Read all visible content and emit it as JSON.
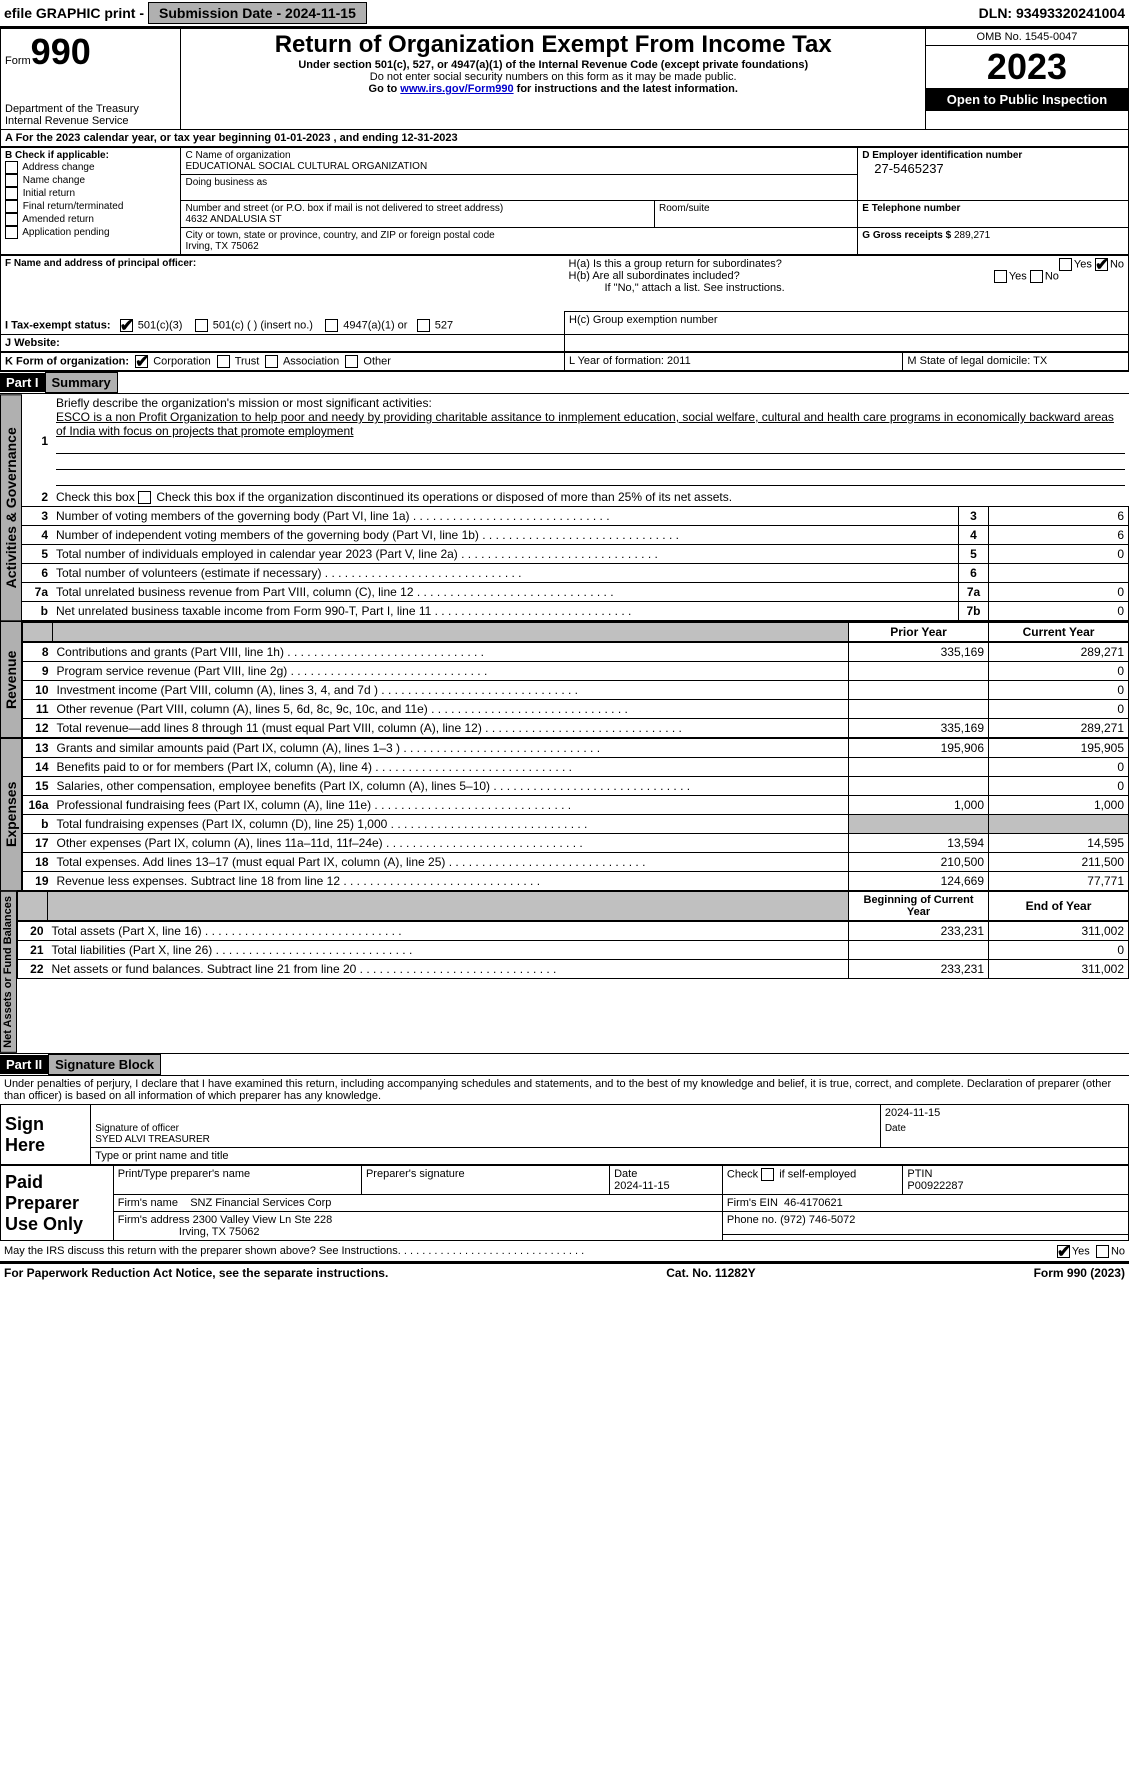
{
  "top": {
    "efile": "efile GRAPHIC print -",
    "submission_label": "Submission Date - 2024-11-15",
    "dln": "DLN: 93493320241004"
  },
  "header": {
    "form_label": "Form",
    "form_number": "990",
    "dept": "Department of the Treasury",
    "irs": "Internal Revenue Service",
    "title": "Return of Organization Exempt From Income Tax",
    "sub1": "Under section 501(c), 527, or 4947(a)(1) of the Internal Revenue Code (except private foundations)",
    "sub2": "Do not enter social security numbers on this form as it may be made public.",
    "sub3_pre": "Go to ",
    "sub3_link": "www.irs.gov/Form990",
    "sub3_post": " for instructions and the latest information.",
    "omb": "OMB No. 1545-0047",
    "year": "2023",
    "open": "Open to Public Inspection"
  },
  "A": {
    "line": "A For the 2023 calendar year, or tax year beginning 01-01-2023     , and ending 12-31-2023"
  },
  "B": {
    "title": "B Check if applicable:",
    "items": [
      "Address change",
      "Name change",
      "Initial return",
      "Final return/terminated",
      "Amended return",
      "Application pending"
    ]
  },
  "C": {
    "name_label": "C Name of organization",
    "name": "EDUCATIONAL SOCIAL CULTURAL ORGANIZATION",
    "dba_label": "Doing business as",
    "street_label": "Number and street (or P.O. box if mail is not delivered to street address)",
    "street": "4632 ANDALUSIA ST",
    "room_label": "Room/suite",
    "city_label": "City or town, state or province, country, and ZIP or foreign postal code",
    "city": "Irving, TX  75062"
  },
  "D": {
    "label": "D Employer identification number",
    "value": "27-5465237"
  },
  "E": {
    "label": "E Telephone number"
  },
  "G": {
    "label": "G Gross receipts $",
    "value": "289,271"
  },
  "F": {
    "label": "F   Name and address of principal officer:"
  },
  "H": {
    "a": "H(a)  Is this a group return for subordinates?",
    "b": "H(b)  Are all subordinates included?",
    "b_note": "If \"No,\" attach a list. See instructions.",
    "c": "H(c)  Group exemption number",
    "yes": "Yes",
    "no": "No"
  },
  "I": {
    "label": "I     Tax-exempt status:",
    "opts": [
      "501(c)(3)",
      "501(c) (  ) (insert no.)",
      "4947(a)(1) or",
      "527"
    ]
  },
  "J": {
    "label": "J    Website:"
  },
  "K": {
    "label": "K Form of organization:",
    "opts": [
      "Corporation",
      "Trust",
      "Association",
      "Other"
    ]
  },
  "L": {
    "label": "L Year of formation: 2011"
  },
  "M": {
    "label": "M State of legal domicile: TX"
  },
  "partI": {
    "bar": "Part I",
    "title": "Summary"
  },
  "gov": {
    "side": "Activities & Governance",
    "l1_label": "Briefly describe the organization's mission or most significant activities:",
    "l1_text": "ESCO is a non Profit Organization to help poor and needy by providing charitable assitance to inmplement education, social welfare, cultural and health care programs in economically backward areas of India with focus on projects that promote employment",
    "l2": "Check this box      if the organization discontinued its operations or disposed of more than 25% of its net assets.",
    "rows": [
      {
        "n": "3",
        "lbl": "Number of voting members of the governing body (Part VI, line 1a)",
        "box": "3",
        "val": "6"
      },
      {
        "n": "4",
        "lbl": "Number of independent voting members of the governing body (Part VI, line 1b)",
        "box": "4",
        "val": "6"
      },
      {
        "n": "5",
        "lbl": "Total number of individuals employed in calendar year 2023 (Part V, line 2a)",
        "box": "5",
        "val": "0"
      },
      {
        "n": "6",
        "lbl": "Total number of volunteers (estimate if necessary)",
        "box": "6",
        "val": ""
      },
      {
        "n": "7a",
        "lbl": "Total unrelated business revenue from Part VIII, column (C), line 12",
        "box": "7a",
        "val": "0"
      },
      {
        "n": "b",
        "lbl": "Net unrelated business taxable income from Form 990-T, Part I, line 11",
        "box": "7b",
        "val": "0"
      }
    ]
  },
  "rev": {
    "side": "Revenue",
    "hdr_prior": "Prior Year",
    "hdr_curr": "Current Year",
    "rows": [
      {
        "n": "8",
        "lbl": "Contributions and grants (Part VIII, line 1h)",
        "prior": "335,169",
        "curr": "289,271"
      },
      {
        "n": "9",
        "lbl": "Program service revenue (Part VIII, line 2g)",
        "prior": "",
        "curr": "0"
      },
      {
        "n": "10",
        "lbl": "Investment income (Part VIII, column (A), lines 3, 4, and 7d )",
        "prior": "",
        "curr": "0"
      },
      {
        "n": "11",
        "lbl": "Other revenue (Part VIII, column (A), lines 5, 6d, 8c, 9c, 10c, and 11e)",
        "prior": "",
        "curr": "0"
      },
      {
        "n": "12",
        "lbl": "Total revenue—add lines 8 through 11 (must equal Part VIII, column (A), line 12)",
        "prior": "335,169",
        "curr": "289,271"
      }
    ]
  },
  "exp": {
    "side": "Expenses",
    "rows": [
      {
        "n": "13",
        "lbl": "Grants and similar amounts paid (Part IX, column (A), lines 1–3 )",
        "prior": "195,906",
        "curr": "195,905"
      },
      {
        "n": "14",
        "lbl": "Benefits paid to or for members (Part IX, column (A), line 4)",
        "prior": "",
        "curr": "0"
      },
      {
        "n": "15",
        "lbl": "Salaries, other compensation, employee benefits (Part IX, column (A), lines 5–10)",
        "prior": "",
        "curr": "0"
      },
      {
        "n": "16a",
        "lbl": "Professional fundraising fees (Part IX, column (A), line 11e)",
        "prior": "1,000",
        "curr": "1,000"
      },
      {
        "n": "b",
        "lbl": "Total fundraising expenses (Part IX, column (D), line 25) 1,000",
        "prior": "SHADE",
        "curr": "SHADE"
      },
      {
        "n": "17",
        "lbl": "Other expenses (Part IX, column (A), lines 11a–11d, 11f–24e)",
        "prior": "13,594",
        "curr": "14,595"
      },
      {
        "n": "18",
        "lbl": "Total expenses. Add lines 13–17 (must equal Part IX, column (A), line 25)",
        "prior": "210,500",
        "curr": "211,500"
      },
      {
        "n": "19",
        "lbl": "Revenue less expenses. Subtract line 18 from line 12",
        "prior": "124,669",
        "curr": "77,771"
      }
    ]
  },
  "net": {
    "side": "Net Assets or Fund Balances",
    "hdr_prior": "Beginning of Current Year",
    "hdr_curr": "End of Year",
    "rows": [
      {
        "n": "20",
        "lbl": "Total assets (Part X, line 16)",
        "prior": "233,231",
        "curr": "311,002"
      },
      {
        "n": "21",
        "lbl": "Total liabilities (Part X, line 26)",
        "prior": "",
        "curr": "0"
      },
      {
        "n": "22",
        "lbl": "Net assets or fund balances. Subtract line 21 from line 20",
        "prior": "233,231",
        "curr": "311,002"
      }
    ]
  },
  "partII": {
    "bar": "Part II",
    "title": "Signature Block"
  },
  "perjury": "Under penalties of perjury, I declare that I have examined this return, including accompanying schedules and statements, and to the best of my knowledge and belief, it is true, correct, and complete. Declaration of preparer (other than officer) is based on all information of which preparer has any knowledge.",
  "sign": {
    "here": "Sign Here",
    "date": "2024-11-15",
    "sig_label": "Signature of officer",
    "name": "SYED ALVI  TREASURER",
    "type_label": "Type or print name and title",
    "date_label": "Date"
  },
  "paid": {
    "here": "Paid Preparer Use Only",
    "name_label": "Print/Type preparer's name",
    "sig_label": "Preparer's signature",
    "date_label": "Date",
    "date": "2024-11-15",
    "check_label": "Check        if self-employed",
    "ptin_label": "PTIN",
    "ptin": "P00922287",
    "firm_name_label": "Firm's name",
    "firm_name": "SNZ Financial Services Corp",
    "ein_label": "Firm's EIN",
    "ein": "46-4170621",
    "addr_label": "Firm's address",
    "addr1": "2300 Valley View Ln Ste 228",
    "addr2": "Irving, TX  75062",
    "phone_label": "Phone no.",
    "phone": "(972) 746-5072"
  },
  "discuss": {
    "text": "May the IRS discuss this return with the preparer shown above? See Instructions.",
    "yes": "Yes",
    "no": "No"
  },
  "footer": {
    "left": "For Paperwork Reduction Act Notice, see the separate instructions.",
    "mid": "Cat. No. 11282Y",
    "right": "Form 990 (2023)"
  }
}
